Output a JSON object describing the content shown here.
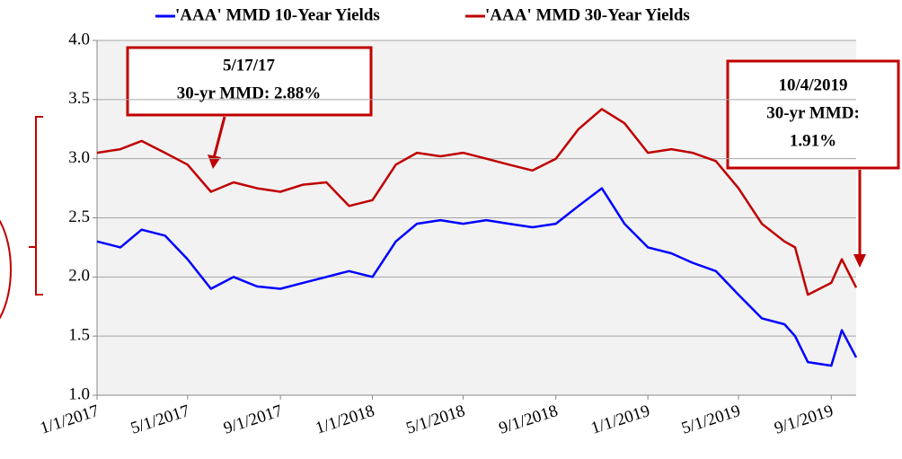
{
  "chart_data": {
    "type": "line",
    "x": [
      "1/1/2017",
      "2/1/2017",
      "3/1/2017",
      "4/1/2017",
      "5/1/2017",
      "6/1/2017",
      "7/1/2017",
      "8/1/2017",
      "9/1/2017",
      "10/1/2017",
      "11/1/2017",
      "12/1/2017",
      "1/1/2018",
      "2/1/2018",
      "3/1/2018",
      "4/1/2018",
      "5/1/2018",
      "6/1/2018",
      "7/1/2018",
      "8/1/2018",
      "9/1/2018",
      "10/1/2018",
      "11/1/2018",
      "12/1/2018",
      "1/1/2019",
      "2/1/2019",
      "3/1/2019",
      "4/1/2019",
      "5/1/2019",
      "6/1/2019",
      "7/1/2019",
      "7/15/2019",
      "8/1/2019",
      "9/1/2019",
      "9/15/2019",
      "10/4/2019"
    ],
    "series": [
      {
        "name": "'AAA' MMD 10-Year Yields",
        "color": "#0000ff",
        "values": [
          2.3,
          2.25,
          2.4,
          2.35,
          2.15,
          1.9,
          2.0,
          1.92,
          1.9,
          1.95,
          2.0,
          2.05,
          2.0,
          2.3,
          2.45,
          2.48,
          2.45,
          2.48,
          2.45,
          2.42,
          2.45,
          2.6,
          2.75,
          2.45,
          2.25,
          2.2,
          2.12,
          2.05,
          1.85,
          1.65,
          1.6,
          1.5,
          1.28,
          1.25,
          1.55,
          1.32
        ]
      },
      {
        "name": "'AAA' MMD 30-Year Yields",
        "color": "#c00000",
        "values": [
          3.05,
          3.08,
          3.15,
          3.05,
          2.95,
          2.72,
          2.8,
          2.75,
          2.72,
          2.78,
          2.8,
          2.6,
          2.65,
          2.95,
          3.05,
          3.02,
          3.05,
          3.0,
          2.95,
          2.9,
          3.0,
          3.25,
          3.42,
          3.3,
          3.05,
          3.08,
          3.05,
          2.98,
          2.75,
          2.45,
          2.3,
          2.25,
          1.85,
          1.95,
          2.15,
          1.91
        ]
      }
    ],
    "xlim": [
      "1/1/2017",
      "10/4/2019"
    ],
    "xticks": [
      "1/1/2017",
      "5/1/2017",
      "9/1/2017",
      "1/1/2018",
      "5/1/2018",
      "9/1/2018",
      "1/1/2019",
      "5/1/2019",
      "9/1/2019"
    ],
    "ylim": [
      1.0,
      4.0
    ],
    "yticks": [
      {
        "value": 1.0,
        "label": "1.0"
      },
      {
        "value": 1.5,
        "label": "1.5"
      },
      {
        "value": 2.0,
        "label": "2.0"
      },
      {
        "value": 2.5,
        "label": "2.5"
      },
      {
        "value": 3.0,
        "label": "3.0"
      },
      {
        "value": 3.5,
        "label": "3.5"
      },
      {
        "value": 4.0,
        "label": "4.0"
      }
    ],
    "grid": true,
    "annotations": [
      {
        "lines": [
          "5/17/17",
          "30-yr MMD: 2.88%"
        ]
      },
      {
        "lines": [
          "10/4/2019",
          "30-yr MMD:",
          "1.91%"
        ]
      }
    ]
  }
}
